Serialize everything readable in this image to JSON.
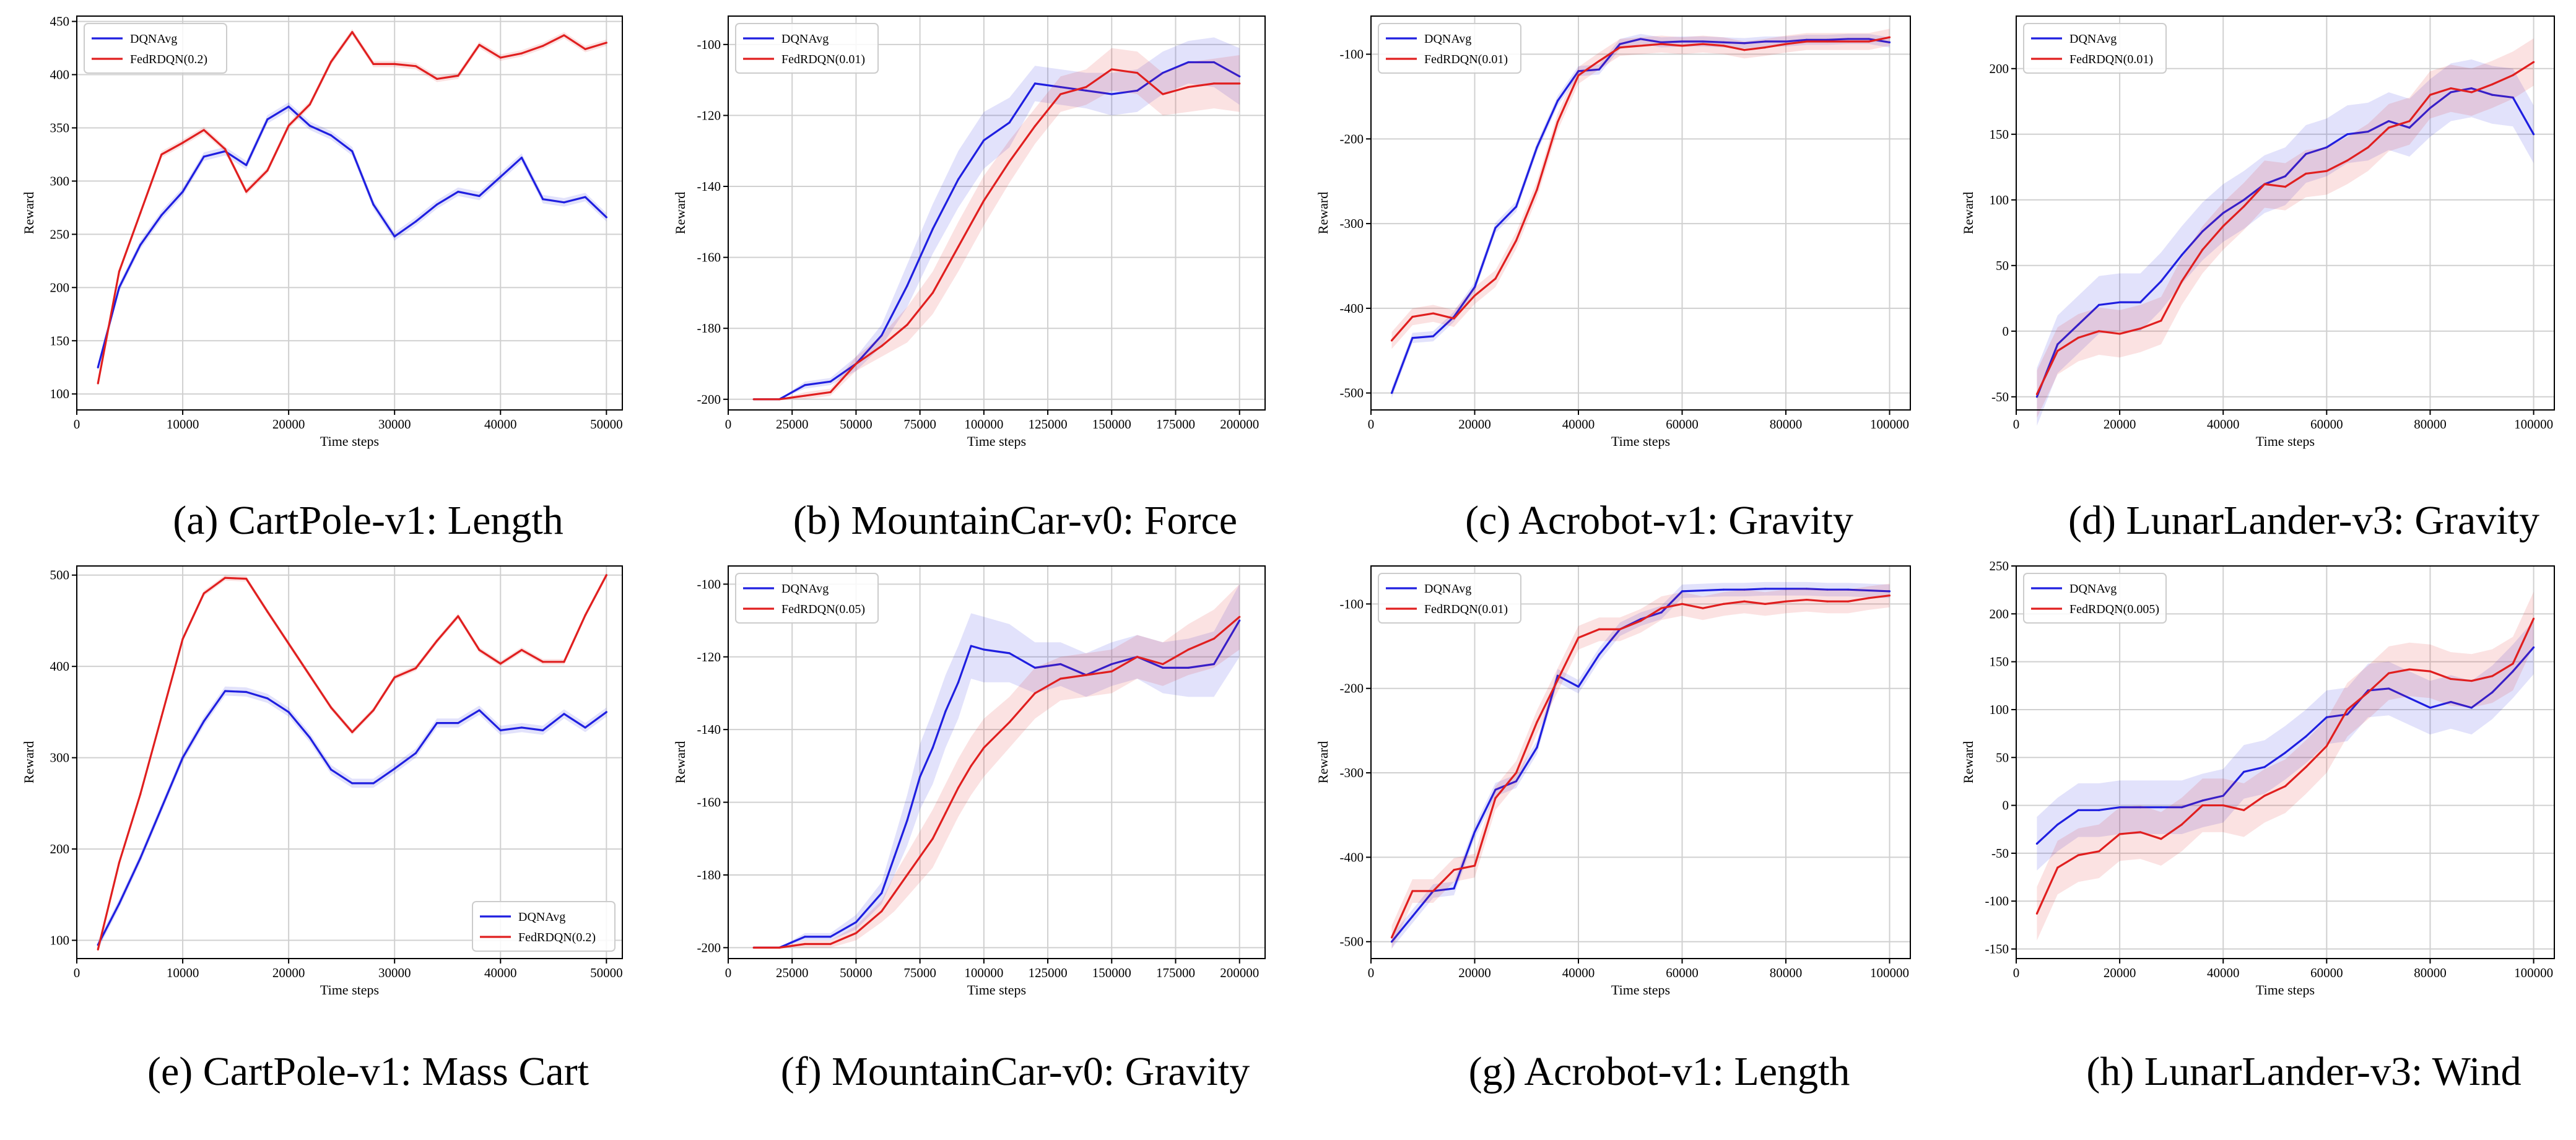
{
  "chart_data": [
    {
      "type": "line",
      "caption": "(a) CartPole-v1: Length",
      "xlabel": "Time steps",
      "ylabel": "Reward",
      "xlim": [
        0,
        51500
      ],
      "ylim": [
        85,
        455
      ],
      "xticks": [
        0,
        10000,
        20000,
        30000,
        40000,
        50000
      ],
      "yticks": [
        100,
        150,
        200,
        250,
        300,
        350,
        400,
        450
      ],
      "tick_labels_x": [
        "0",
        "10000",
        "20000",
        "30000",
        "40000",
        "50000"
      ],
      "tick_labels_y": [
        "100",
        "150",
        "200",
        "250",
        "300",
        "350",
        "400",
        "450"
      ],
      "grid": true,
      "legend_position": "top-left",
      "x": [
        2000,
        4000,
        6000,
        8000,
        10000,
        12000,
        14000,
        16000,
        18000,
        20000,
        22000,
        24000,
        26000,
        28000,
        30000,
        32000,
        34000,
        36000,
        38000,
        40000,
        42000,
        44000,
        46000,
        48000,
        50000
      ],
      "series": [
        {
          "name": "DQNAvg",
          "color": "#1f1fe0",
          "values": [
            125,
            200,
            240,
            268,
            290,
            323,
            328,
            315,
            358,
            370,
            352,
            343,
            328,
            278,
            248,
            262,
            278,
            290,
            286,
            304,
            322,
            283,
            280,
            285,
            266
          ],
          "band": 4
        },
        {
          "name": "FedRDQN(0.2)",
          "color": "#e01f1f",
          "values": [
            110,
            215,
            270,
            325,
            336,
            348,
            330,
            290,
            310,
            352,
            372,
            412,
            440,
            410,
            410,
            408,
            396,
            399,
            428,
            416,
            420,
            427,
            437,
            424,
            430
          ],
          "band": 3
        }
      ]
    },
    {
      "type": "line",
      "caption": "(b) MountainCar-v0: Force",
      "xlabel": "Time steps",
      "ylabel": "Reward",
      "xlim": [
        0,
        210000
      ],
      "ylim": [
        -203,
        -92
      ],
      "xticks": [
        0,
        25000,
        50000,
        75000,
        100000,
        125000,
        150000,
        175000,
        200000
      ],
      "yticks": [
        -200,
        -180,
        -160,
        -140,
        -120,
        -100
      ],
      "tick_labels_x": [
        "0",
        "25000",
        "50000",
        "75000",
        "100000",
        "125000",
        "150000",
        "175000",
        "200000"
      ],
      "tick_labels_y": [
        "-200",
        "-180",
        "-160",
        "-140",
        "-120",
        "-100"
      ],
      "grid": true,
      "legend_position": "top-left",
      "x": [
        10000,
        20000,
        30000,
        40000,
        50000,
        60000,
        70000,
        80000,
        90000,
        100000,
        110000,
        120000,
        130000,
        140000,
        150000,
        160000,
        170000,
        180000,
        190000,
        200000
      ],
      "series": [
        {
          "name": "DQNAvg",
          "color": "#1f1fe0",
          "values": [
            -200,
            -200,
            -196,
            -195,
            -190,
            -182,
            -168,
            -152,
            -138,
            -127,
            -122,
            -111,
            -112,
            -113,
            -114,
            -113,
            -108,
            -105,
            -105,
            -109
          ],
          "band": [
            0,
            0,
            1,
            1,
            2,
            3,
            6,
            7,
            8,
            8,
            7,
            5,
            5,
            5,
            6,
            6,
            6,
            6,
            7,
            8
          ]
        },
        {
          "name": "FedRDQN(0.01)",
          "color": "#e01f1f",
          "values": [
            -200,
            -200,
            -199,
            -198,
            -190,
            -185,
            -179,
            -170,
            -157,
            -144,
            -133,
            -123,
            -114,
            -112,
            -107,
            -108,
            -114,
            -112,
            -111,
            -111
          ],
          "band": [
            0,
            0,
            1,
            1,
            2,
            3,
            5,
            6,
            7,
            7,
            6,
            5,
            5,
            5,
            6,
            6,
            6,
            7,
            7,
            8
          ]
        }
      ]
    },
    {
      "type": "line",
      "caption": "(c) Acrobot-v1: Gravity",
      "xlabel": "Time steps",
      "ylabel": "Reward",
      "xlim": [
        0,
        104000
      ],
      "ylim": [
        -520,
        -55
      ],
      "xticks": [
        0,
        20000,
        40000,
        60000,
        80000,
        100000
      ],
      "yticks": [
        -500,
        -400,
        -300,
        -200,
        -100
      ],
      "tick_labels_x": [
        "0",
        "20000",
        "40000",
        "60000",
        "80000",
        "100000"
      ],
      "tick_labels_y": [
        "-500",
        "-400",
        "-300",
        "-200",
        "-100"
      ],
      "grid": true,
      "legend_position": "top-left",
      "x": [
        4000,
        8000,
        12000,
        16000,
        20000,
        24000,
        28000,
        32000,
        36000,
        40000,
        44000,
        48000,
        52000,
        56000,
        60000,
        64000,
        68000,
        72000,
        76000,
        80000,
        84000,
        88000,
        92000,
        96000,
        100000
      ],
      "series": [
        {
          "name": "DQNAvg",
          "color": "#1f1fe0",
          "values": [
            -500,
            -435,
            -433,
            -410,
            -375,
            -305,
            -280,
            -210,
            -155,
            -120,
            -118,
            -88,
            -82,
            -86,
            -85,
            -85,
            -86,
            -87,
            -85,
            -85,
            -83,
            -83,
            -82,
            -82,
            -86
          ],
          "band": 6
        },
        {
          "name": "FedRDQN(0.01)",
          "color": "#e01f1f",
          "values": [
            -438,
            -410,
            -406,
            -412,
            -385,
            -365,
            -320,
            -260,
            -180,
            -125,
            -108,
            -92,
            -90,
            -88,
            -90,
            -88,
            -90,
            -95,
            -92,
            -88,
            -85,
            -85,
            -85,
            -85,
            -80
          ],
          "band": 10
        }
      ]
    },
    {
      "type": "line",
      "caption": "(d) LunarLander-v3: Gravity",
      "xlabel": "Time steps",
      "ylabel": "Reward",
      "xlim": [
        0,
        104000
      ],
      "ylim": [
        -60,
        240
      ],
      "xticks": [
        0,
        20000,
        40000,
        60000,
        80000,
        100000
      ],
      "yticks": [
        -50,
        0,
        50,
        100,
        150,
        200
      ],
      "tick_labels_x": [
        "0",
        "20000",
        "40000",
        "60000",
        "80000",
        "100000"
      ],
      "tick_labels_y": [
        "-50",
        "0",
        "50",
        "100",
        "150",
        "200"
      ],
      "grid": true,
      "legend_position": "top-left",
      "x": [
        4000,
        8000,
        12000,
        16000,
        20000,
        24000,
        28000,
        32000,
        36000,
        40000,
        44000,
        48000,
        52000,
        56000,
        60000,
        64000,
        68000,
        72000,
        76000,
        80000,
        84000,
        88000,
        92000,
        96000,
        100000
      ],
      "series": [
        {
          "name": "DQNAvg",
          "color": "#1f1fe0",
          "values": [
            -50,
            -10,
            5,
            20,
            22,
            22,
            38,
            58,
            76,
            90,
            100,
            112,
            118,
            135,
            140,
            150,
            152,
            160,
            155,
            170,
            182,
            185,
            180,
            178,
            150
          ],
          "band": 22
        },
        {
          "name": "FedRDQN(0.01)",
          "color": "#e01f1f",
          "values": [
            -48,
            -15,
            -5,
            0,
            -2,
            2,
            8,
            38,
            62,
            80,
            95,
            112,
            110,
            120,
            122,
            130,
            140,
            155,
            160,
            180,
            185,
            182,
            188,
            195,
            205
          ],
          "band": 18
        }
      ]
    },
    {
      "type": "line",
      "caption": "(e) CartPole-v1: Mass Cart",
      "xlabel": "Time steps",
      "ylabel": "Reward",
      "xlim": [
        0,
        51500
      ],
      "ylim": [
        80,
        510
      ],
      "xticks": [
        0,
        10000,
        20000,
        30000,
        40000,
        50000
      ],
      "yticks": [
        100,
        200,
        300,
        400,
        500
      ],
      "tick_labels_x": [
        "0",
        "10000",
        "20000",
        "30000",
        "40000",
        "50000"
      ],
      "tick_labels_y": [
        "100",
        "200",
        "300",
        "400",
        "500"
      ],
      "grid": true,
      "legend_position": "bottom-right",
      "x": [
        2000,
        4000,
        6000,
        8000,
        10000,
        12000,
        14000,
        16000,
        18000,
        20000,
        22000,
        24000,
        26000,
        28000,
        30000,
        32000,
        34000,
        36000,
        38000,
        40000,
        42000,
        44000,
        46000,
        48000,
        50000
      ],
      "series": [
        {
          "name": "DQNAvg",
          "color": "#1f1fe0",
          "values": [
            95,
            140,
            190,
            245,
            300,
            340,
            373,
            372,
            365,
            350,
            322,
            287,
            272,
            272,
            288,
            305,
            338,
            338,
            352,
            330,
            333,
            330,
            348,
            333,
            350
          ],
          "band": 5
        },
        {
          "name": "FedRDQN(0.2)",
          "color": "#e01f1f",
          "values": [
            90,
            185,
            260,
            345,
            430,
            480,
            497,
            496,
            460,
            425,
            390,
            355,
            328,
            352,
            388,
            398,
            428,
            455,
            418,
            403,
            418,
            405,
            405,
            456,
            500
          ],
          "band": 3
        }
      ]
    },
    {
      "type": "line",
      "caption": "(f) MountainCar-v0: Gravity",
      "xlabel": "Time steps",
      "ylabel": "Reward",
      "xlim": [
        0,
        210000
      ],
      "ylim": [
        -203,
        -95
      ],
      "xticks": [
        0,
        25000,
        50000,
        75000,
        100000,
        125000,
        150000,
        175000,
        200000
      ],
      "yticks": [
        -200,
        -180,
        -160,
        -140,
        -120,
        -100
      ],
      "tick_labels_x": [
        "0",
        "25000",
        "50000",
        "75000",
        "100000",
        "125000",
        "150000",
        "175000",
        "200000"
      ],
      "tick_labels_y": [
        "-200",
        "-180",
        "-160",
        "-140",
        "-120",
        "-100"
      ],
      "grid": true,
      "legend_position": "top-left",
      "x": [
        10000,
        20000,
        30000,
        40000,
        50000,
        60000,
        65000,
        70000,
        75000,
        80000,
        85000,
        90000,
        95000,
        100000,
        110000,
        120000,
        130000,
        140000,
        150000,
        160000,
        170000,
        180000,
        190000,
        200000
      ],
      "series": [
        {
          "name": "DQNAvg",
          "color": "#1f1fe0",
          "values": [
            -200,
            -200,
            -197,
            -197,
            -193,
            -185,
            -175,
            -165,
            -153,
            -145,
            -135,
            -127,
            -117,
            -118,
            -119,
            -123,
            -122,
            -125,
            -122,
            -120,
            -123,
            -123,
            -122,
            -110
          ],
          "band": [
            0,
            0,
            1,
            1,
            2,
            3,
            5,
            7,
            9,
            10,
            10,
            10,
            9,
            9,
            8,
            7,
            6,
            6,
            6,
            6,
            7,
            8,
            9,
            10
          ]
        },
        {
          "name": "FedRDQN(0.05)",
          "color": "#e01f1f",
          "values": [
            -200,
            -200,
            -199,
            -199,
            -196,
            -190,
            -185,
            -180,
            -175,
            -170,
            -163,
            -156,
            -150,
            -145,
            -138,
            -130,
            -126,
            -125,
            -124,
            -120,
            -122,
            -118,
            -115,
            -109
          ],
          "band": [
            0,
            0,
            1,
            1,
            2,
            3,
            5,
            6,
            7,
            8,
            8,
            8,
            8,
            8,
            7,
            7,
            6,
            6,
            6,
            6,
            6,
            7,
            8,
            9
          ]
        }
      ]
    },
    {
      "type": "line",
      "caption": "(g) Acrobot-v1: Length",
      "xlabel": "Time steps",
      "ylabel": "Reward",
      "xlim": [
        0,
        104000
      ],
      "ylim": [
        -520,
        -55
      ],
      "xticks": [
        0,
        20000,
        40000,
        60000,
        80000,
        100000
      ],
      "yticks": [
        -500,
        -400,
        -300,
        -200,
        -100
      ],
      "tick_labels_x": [
        "0",
        "20000",
        "40000",
        "60000",
        "80000",
        "100000"
      ],
      "tick_labels_y": [
        "-500",
        "-400",
        "-300",
        "-200",
        "-100"
      ],
      "grid": true,
      "legend_position": "top-left",
      "x": [
        4000,
        8000,
        12000,
        16000,
        20000,
        24000,
        28000,
        32000,
        36000,
        40000,
        44000,
        48000,
        52000,
        56000,
        60000,
        64000,
        68000,
        72000,
        76000,
        80000,
        84000,
        88000,
        92000,
        96000,
        100000
      ],
      "series": [
        {
          "name": "DQNAvg",
          "color": "#1f1fe0",
          "values": [
            -500,
            -470,
            -440,
            -437,
            -370,
            -320,
            -310,
            -270,
            -185,
            -198,
            -160,
            -130,
            -118,
            -110,
            -85,
            -84,
            -83,
            -83,
            -82,
            -82,
            -82,
            -83,
            -83,
            -84,
            -85
          ],
          "band": 8
        },
        {
          "name": "FedRDQN(0.01)",
          "color": "#e01f1f",
          "values": [
            -495,
            -440,
            -440,
            -415,
            -410,
            -330,
            -300,
            -240,
            -190,
            -140,
            -130,
            -130,
            -120,
            -105,
            -100,
            -105,
            -100,
            -97,
            -100,
            -97,
            -95,
            -97,
            -97,
            -93,
            -90
          ],
          "band": 14
        }
      ]
    },
    {
      "type": "line",
      "caption": "(h) LunarLander-v3: Wind",
      "xlabel": "Time steps",
      "ylabel": "Reward",
      "xlim": [
        0,
        104000
      ],
      "ylim": [
        -160,
        250
      ],
      "xticks": [
        0,
        20000,
        40000,
        60000,
        80000,
        100000
      ],
      "yticks": [
        -150,
        -100,
        -50,
        0,
        50,
        100,
        150,
        200,
        250
      ],
      "tick_labels_x": [
        "0",
        "20000",
        "40000",
        "60000",
        "80000",
        "100000"
      ],
      "tick_labels_y": [
        "-150",
        "-100",
        "-50",
        "0",
        "50",
        "100",
        "150",
        "200",
        "250"
      ],
      "grid": true,
      "legend_position": "top-left",
      "x": [
        4000,
        8000,
        12000,
        16000,
        20000,
        24000,
        28000,
        32000,
        36000,
        40000,
        44000,
        48000,
        52000,
        56000,
        60000,
        64000,
        68000,
        72000,
        76000,
        80000,
        84000,
        88000,
        92000,
        96000,
        100000
      ],
      "series": [
        {
          "name": "DQNAvg",
          "color": "#1f1fe0",
          "values": [
            -40,
            -20,
            -5,
            -5,
            -2,
            -2,
            -2,
            -2,
            5,
            10,
            35,
            40,
            55,
            72,
            92,
            95,
            120,
            122,
            112,
            102,
            108,
            102,
            118,
            140,
            165
          ],
          "band": 28
        },
        {
          "name": "FedRDQN(0.005)",
          "color": "#e01f1f",
          "values": [
            -113,
            -65,
            -52,
            -48,
            -30,
            -28,
            -35,
            -20,
            0,
            0,
            -5,
            10,
            20,
            40,
            62,
            100,
            118,
            138,
            142,
            140,
            132,
            130,
            135,
            148,
            195
          ],
          "band": 28
        }
      ]
    }
  ]
}
